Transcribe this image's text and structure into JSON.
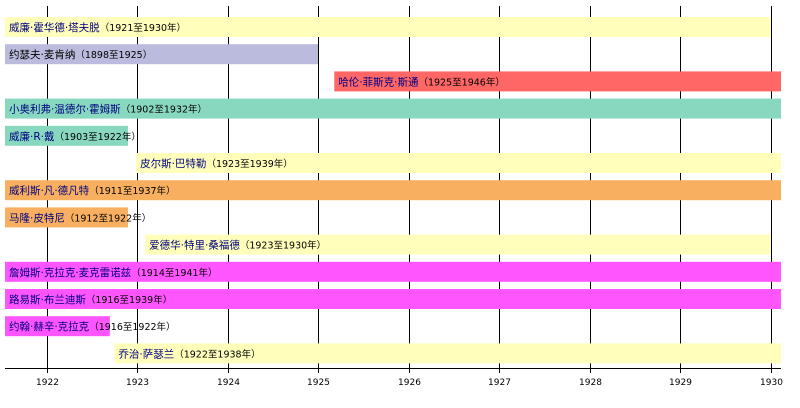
{
  "chart_data": {
    "type": "bar",
    "orientation": "horizontal-timeline",
    "x_axis": {
      "min": 1921.6,
      "max": 1930.1,
      "ticks": [
        1922,
        1923,
        1924,
        1925,
        1926,
        1927,
        1928,
        1929,
        1930
      ],
      "tick_labels": [
        "1922",
        "1923",
        "1924",
        "1925",
        "1926",
        "1927",
        "1928",
        "1929",
        "1930"
      ]
    },
    "grid": true,
    "name_color": "#000080",
    "bars": [
      {
        "name": "威廉·霍华德·塔夫脱",
        "years": "（1921至1930年）",
        "start": 1921,
        "end": 1930,
        "color": "#ffffbb"
      },
      {
        "name": "约瑟夫·麦肯纳",
        "years": "（1898至1925）",
        "start": 1898,
        "end": 1925,
        "color": "#bbbbdd",
        "name_color": "#000000"
      },
      {
        "name": "哈伦·菲斯克·斯通",
        "years": "（1925至1946年）",
        "start": 1925.18,
        "end": 1946,
        "color": "#ff6666"
      },
      {
        "name": "小奥利弗·温德尔·霍姆斯",
        "years": "（1902至1932年）",
        "start": 1902,
        "end": 1932,
        "color": "#88d8c0"
      },
      {
        "name": "威廉·R·戴",
        "years": "（1903至1922年）",
        "start": 1903,
        "end": 1922.9,
        "color": "#88d8c0"
      },
      {
        "name": "皮尔斯·巴特勒",
        "years": "（1923至1939年）",
        "start": 1922.99,
        "end": 1939,
        "color": "#ffffbb"
      },
      {
        "name": "威利斯·凡·德凡特",
        "years": "（1911至1937年）",
        "start": 1911,
        "end": 1937,
        "color": "#f8b060"
      },
      {
        "name": "马隆·皮特尼",
        "years": "（1912至1922年）",
        "start": 1912,
        "end": 1922.9,
        "color": "#f8b060"
      },
      {
        "name": "爱德华·特里·桑福德",
        "years": "（1923至1930年）",
        "start": 1923.09,
        "end": 1930,
        "color": "#ffffbb"
      },
      {
        "name": "詹姆斯·克拉克·麦克雷诺兹",
        "years": "（1914至1941年）",
        "start": 1914,
        "end": 1941,
        "color": "#ff55ff"
      },
      {
        "name": "路易斯·布兰迪斯",
        "years": "（1916至1939年）",
        "start": 1916,
        "end": 1939,
        "color": "#ff55ff"
      },
      {
        "name": "约翰·赫辛·克拉克",
        "years": "（1916至1922年）",
        "start": 1916,
        "end": 1922.7,
        "color": "#ff55ff"
      },
      {
        "name": "乔治·萨瑟兰",
        "years": "（1922至1938年）",
        "start": 1922.75,
        "end": 1938,
        "color": "#ffffbb"
      }
    ]
  }
}
